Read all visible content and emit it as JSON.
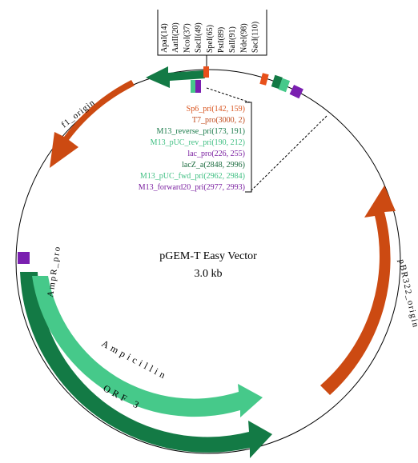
{
  "title": "pGEM-T Easy Vector",
  "size_label": "3.0 kb",
  "restriction_sites": [
    "ApaI(14)",
    "AatII(20)",
    "NcoI(37)",
    "SacII(49)",
    "SpeI(65)",
    "PstI(89)",
    "SalI(91)",
    "NdeI(98)",
    "SacI(110)"
  ],
  "primer_legend": [
    {
      "text": "Sp6_pri(142, 159)",
      "color": "#d9541e"
    },
    {
      "text": "T7_pro(3000, 2)",
      "color": "#c04a1c"
    },
    {
      "text": "M13_reverse_pri(173, 191)",
      "color": "#1a7a4a"
    },
    {
      "text": "M13_pUC_rev_pri(190, 212)",
      "color": "#3fbf82"
    },
    {
      "text": "lac_pro(226, 255)",
      "color": "#7a1fa0"
    },
    {
      "text": "lacZ_a(2848, 2996)",
      "color": "#1a6b3e"
    },
    {
      "text": "M13_pUC_fwd_pri(2962, 2984)",
      "color": "#3fbf82"
    },
    {
      "text": "M13_forward20_pri(2977, 2993)",
      "color": "#7a1fa0"
    }
  ],
  "features": {
    "f1_origin": "f1_origin",
    "pbr322_origin": "pBR322_origin",
    "ampr_pro": "AmpR_pro",
    "ampicillin": "Ampicillin",
    "orf3": "ORF 3"
  },
  "colors": {
    "orange": "#cc4a12",
    "dark_green": "#137a45",
    "light_green": "#46c98a",
    "purple": "#7a1fb0",
    "red_orange": "#e8501a"
  }
}
